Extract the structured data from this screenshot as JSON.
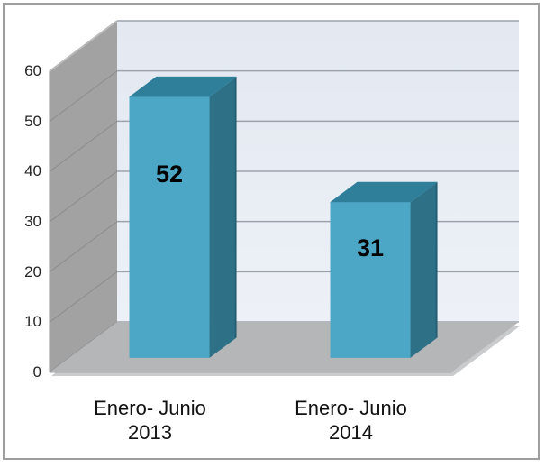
{
  "chart_data": {
    "type": "bar",
    "style": "3d-column",
    "title": "",
    "xlabel": "",
    "ylabel": "",
    "categories": [
      "Enero- Junio 2013",
      "Enero- Junio 2014"
    ],
    "category_lines": [
      [
        "Enero- Junio",
        "2013"
      ],
      [
        "Enero- Junio",
        "2014"
      ]
    ],
    "values": [
      52,
      31
    ],
    "data_labels": [
      "52",
      "31"
    ],
    "ylim": [
      0,
      60
    ],
    "yticks": [
      0,
      10,
      20,
      30,
      40,
      50,
      60
    ],
    "grid": true,
    "legend": false,
    "colors": {
      "bar_front": "#4BA7C5",
      "bar_top": "#2F7F9A",
      "bar_side": "#2E7187",
      "bar_side_edge": "#245E73",
      "wall_left": "#A2A2A2",
      "wall_left_line": "#8F8F8F",
      "wall_top_highlight": "#BBBBBB",
      "back_wall_top": "#E3E8F1",
      "back_wall_bottom": "#EDF1F7",
      "gridline": "#9CA3AC",
      "floor": "#B4B6B8",
      "floor_bevel": "#C9CBCD",
      "floor_edge": "#A5A7A9",
      "axis_text": "#262626",
      "label_text": "#000000",
      "border": "#9E9E9E",
      "background": "#FFFFFF"
    }
  }
}
